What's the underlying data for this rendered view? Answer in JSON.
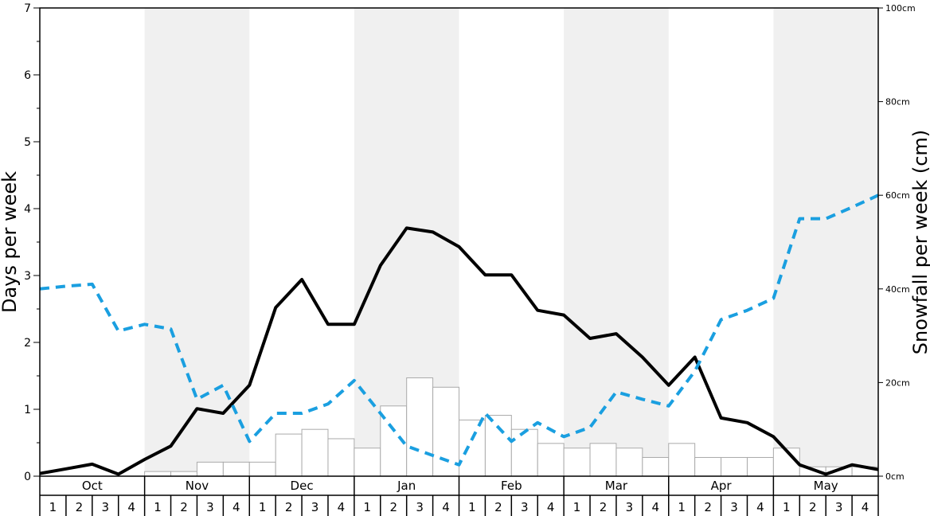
{
  "chart_data": {
    "type": "bar",
    "ylabel_left": "Days per week",
    "ylabel_right": "Snowfall per week (cm)",
    "left_axis": {
      "ylim": [
        0,
        7
      ],
      "ticks": [
        "0",
        "1",
        "2",
        "3",
        "4",
        "5",
        "6",
        "7"
      ]
    },
    "right_axis": {
      "ylim": [
        0,
        100
      ],
      "ticks": [
        "0cm",
        "20cm",
        "40cm",
        "60cm",
        "80cm",
        "100cm"
      ]
    },
    "months": [
      "Oct",
      "Nov",
      "Dec",
      "Jan",
      "Feb",
      "Mar",
      "Apr",
      "May"
    ],
    "week_labels": [
      "1",
      "2",
      "3",
      "4"
    ],
    "grid": false,
    "alternating_month_shading": true,
    "colors": {
      "shade": "#f0f0f0",
      "bars": "#ffffff",
      "bar_edge": "#aaaaaa",
      "solid_line": "#000000",
      "dashed_line": "#1a9fe0"
    },
    "series": [
      {
        "kind": "bar",
        "axis": "right",
        "values": [
          0,
          0,
          0,
          0,
          1,
          1,
          3,
          3,
          3,
          9,
          10,
          8,
          6,
          15,
          21,
          19,
          12,
          13,
          10,
          7,
          6,
          7,
          6,
          4,
          7,
          4,
          4,
          4,
          6,
          2,
          2,
          2,
          0,
          0,
          0,
          0
        ]
      },
      {
        "kind": "line",
        "style": "solid",
        "axis": "left",
        "values": [
          0.04,
          0.11,
          0.18,
          0.03,
          0.25,
          0.45,
          1.01,
          0.94,
          1.36,
          2.52,
          2.94,
          2.27,
          2.27,
          3.15,
          3.71,
          3.65,
          3.43,
          3.01,
          3.01,
          2.48,
          2.41,
          2.06,
          2.13,
          1.78,
          1.36,
          1.78,
          0.87,
          0.8,
          0.59,
          0.17,
          0.03,
          0.17,
          0.1
        ]
      },
      {
        "kind": "line",
        "style": "dashed",
        "axis": "left",
        "values": [
          2.8,
          2.84,
          2.87,
          2.17,
          2.27,
          2.2,
          1.15,
          1.36,
          0.52,
          0.94,
          0.94,
          1.08,
          1.43,
          0.94,
          0.45,
          0.31,
          0.17,
          0.94,
          0.52,
          0.8,
          0.59,
          0.73,
          1.26,
          1.15,
          1.05,
          1.57,
          2.34,
          2.48,
          2.66,
          3.85,
          3.85,
          4.02,
          4.2
        ]
      }
    ]
  }
}
